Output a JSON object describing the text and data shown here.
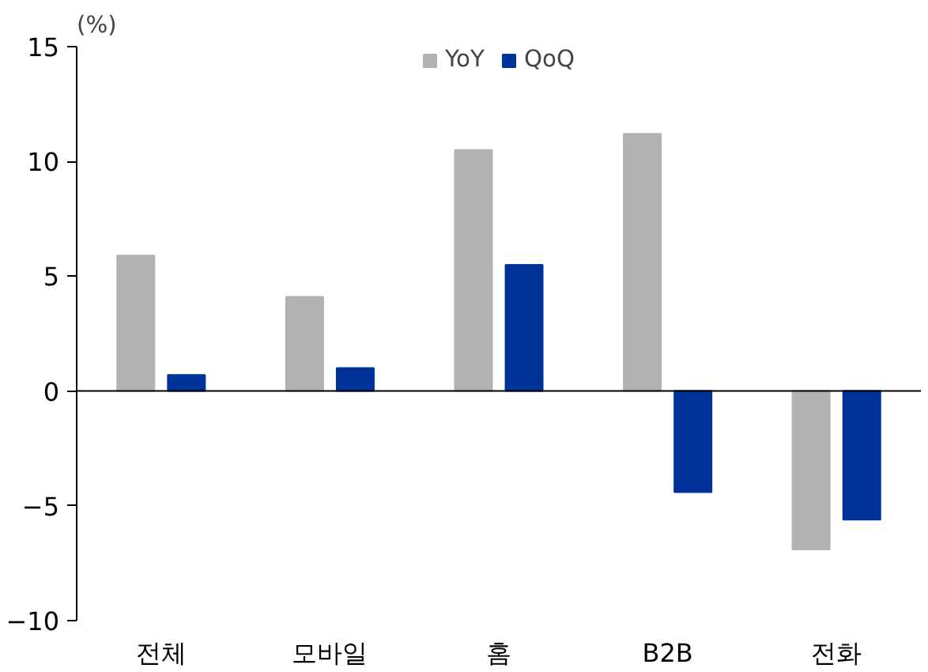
{
  "chart_data": {
    "type": "bar",
    "ylabel": "(%)",
    "categories": [
      "전체",
      "모바일",
      "홈",
      "B2B",
      "전화"
    ],
    "series": [
      {
        "name": "YoY",
        "color": "#b2b2b2",
        "values": [
          5.9,
          4.1,
          10.5,
          11.2,
          -6.9
        ]
      },
      {
        "name": "QoQ",
        "color": "#003399",
        "values": [
          0.7,
          1.0,
          5.5,
          -4.4,
          -5.6
        ]
      }
    ],
    "ylim": [
      -10,
      15
    ],
    "yticks": [
      {
        "value": -10,
        "label": "−10"
      },
      {
        "value": -5,
        "label": "−5"
      },
      0,
      5,
      10,
      15
    ],
    "ref_lines": [
      {
        "axis": "y",
        "value": 0,
        "color": "#000000"
      }
    ],
    "legend": "top",
    "grid": false
  }
}
